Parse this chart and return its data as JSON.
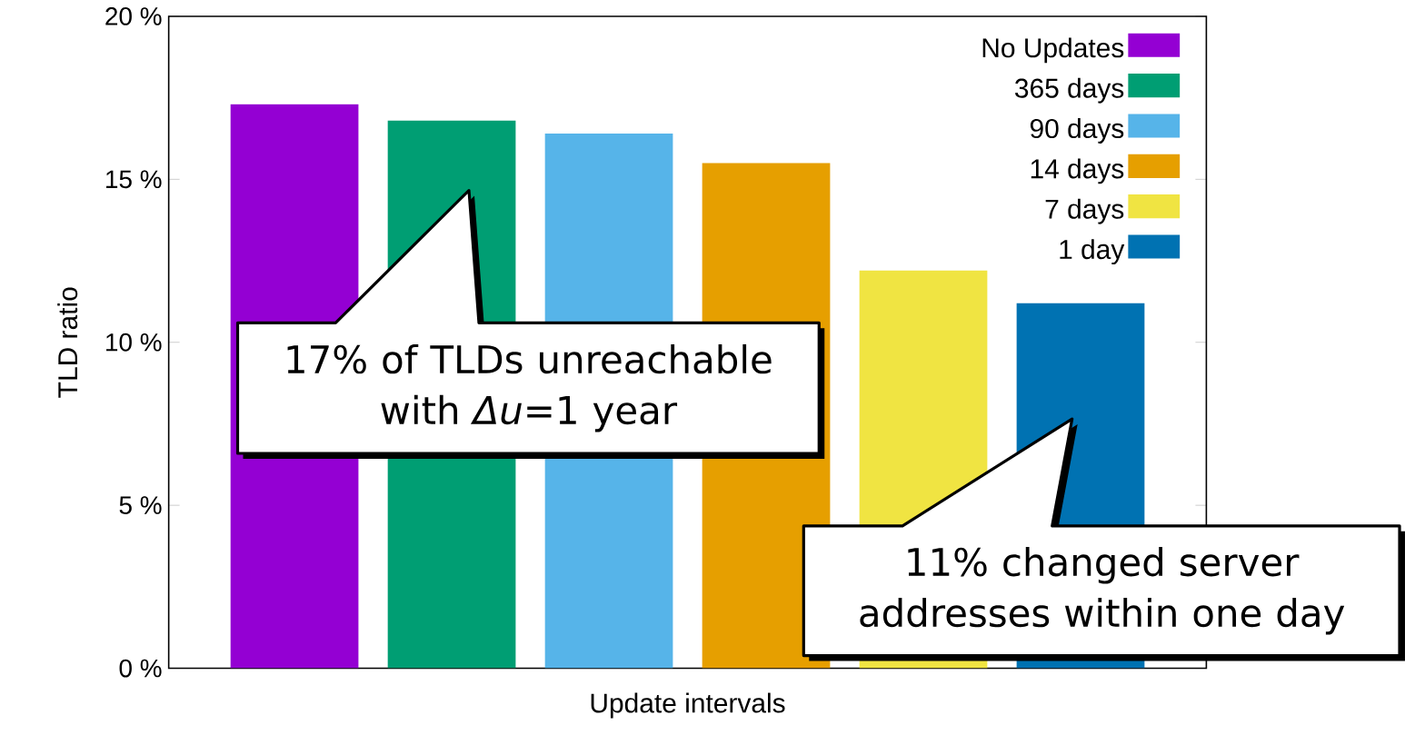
{
  "chart_data": {
    "type": "bar",
    "xlabel": "Update intervals",
    "ylabel": "TLD ratio",
    "categories": [
      null,
      null,
      null,
      null,
      null,
      null
    ],
    "series": [
      {
        "name": "No Updates",
        "color": "#9400d3",
        "values": [
          17.3,
          null,
          null,
          null,
          null,
          null
        ]
      },
      {
        "name": "365 days",
        "color": "#009e73",
        "values": [
          null,
          16.8,
          null,
          null,
          null,
          null
        ]
      },
      {
        "name": "90 days",
        "color": "#56b4e9",
        "values": [
          null,
          null,
          16.4,
          null,
          null,
          null
        ]
      },
      {
        "name": "14 days",
        "color": "#e69f00",
        "values": [
          null,
          null,
          null,
          15.5,
          null,
          null
        ]
      },
      {
        "name": "7 days",
        "color": "#f0e442",
        "values": [
          null,
          null,
          null,
          null,
          12.2,
          null
        ]
      },
      {
        "name": "1 day",
        "color": "#0072b2",
        "values": [
          null,
          null,
          null,
          null,
          null,
          11.2
        ]
      }
    ],
    "ylim": [
      0,
      20
    ],
    "yticks": [
      {
        "value": 0,
        "label": "0 %"
      },
      {
        "value": 5,
        "label": "5 %"
      },
      {
        "value": 10,
        "label": "10 %"
      },
      {
        "value": 15,
        "label": "15 %"
      },
      {
        "value": 20,
        "label": "20 %"
      }
    ],
    "legend": "top right",
    "grid": false,
    "stacked": true,
    "annotations": [
      "17% of TLDs unreachable\nwith *Δu*=1 year",
      "11% changed server\naddresses within one day"
    ]
  }
}
